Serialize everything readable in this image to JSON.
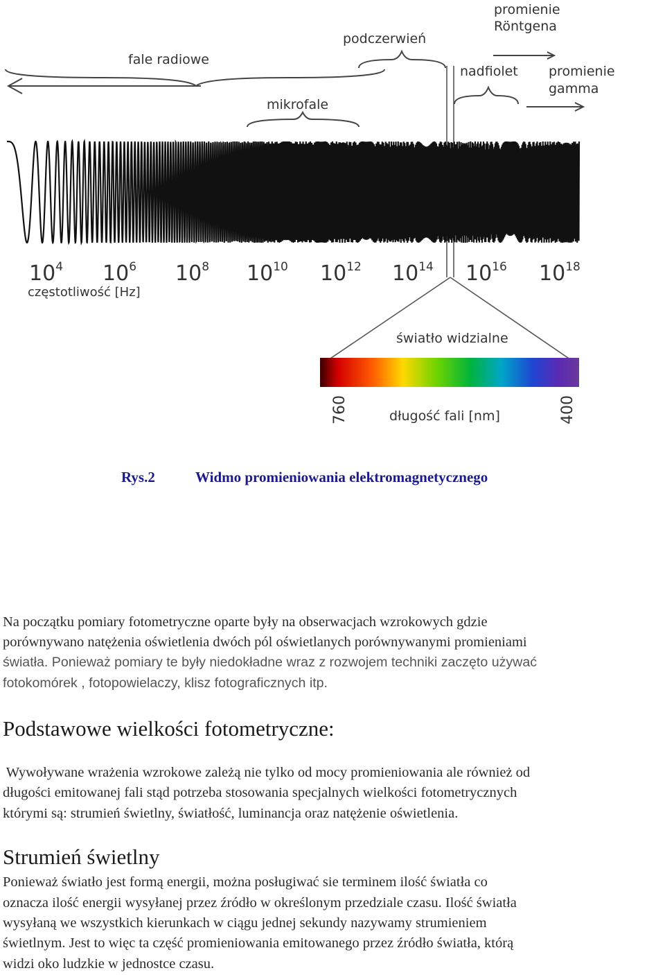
{
  "figure": {
    "bands": {
      "radio": "fale radiowe",
      "microwave": "mikrofale",
      "infrared": "podczerwień",
      "xray_line1": "promienie",
      "xray_line2": "Röntgena",
      "ultraviolet": "nadfiolet",
      "gamma_line1": "promienie",
      "gamma_line2": "gamma"
    },
    "frequency_ticks": [
      {
        "base": "10",
        "exp": "4"
      },
      {
        "base": "10",
        "exp": "6"
      },
      {
        "base": "10",
        "exp": "8"
      },
      {
        "base": "10",
        "exp": "10"
      },
      {
        "base": "10",
        "exp": "12"
      },
      {
        "base": "10",
        "exp": "14"
      },
      {
        "base": "10",
        "exp": "16"
      },
      {
        "base": "10",
        "exp": "18"
      }
    ],
    "frequency_label": "częstotliwość [Hz]",
    "visible_label": "światło widzialne",
    "wavelength_label": "długość fali [nm]",
    "wavelength_left": "760",
    "wavelength_right": "400"
  },
  "caption": {
    "number": "Rys.2",
    "text": "Widmo promieniowania elektromagnetycznego"
  },
  "intro_lines": [
    "Na początku  pomiary fotometryczne oparte były na obserwacjach wzrokowych gdzie",
    "porównywano natężenia oświetlenia dwóch pól oświetlanych porównywanymi promieniami",
    "światła. Ponieważ pomiary te były niedokładne wraz z rozwojem techniki zaczęto używać",
    "fotokomórek , fotopowielaczy, klisz fotograficznych itp."
  ],
  "section1": {
    "heading": "Podstawowe wielkości fotometryczne:",
    "lines": [
      " Wywoływane wrażenia wzrokowe zależą nie tylko od mocy promieniowania ale również od",
      "długości emitowanej fali stąd potrzeba stosowania specjalnych wielkości fotometrycznych",
      "którymi są: strumień świetlny, światłość, luminancja oraz natężenie oświetlenia."
    ]
  },
  "section2": {
    "heading": "Strumień świetlny",
    "lines": [
      "Ponieważ światło jest formą energii,  można posługiwać sie terminem  ilość światła co",
      "oznacza ilość energii wysyłanej przez źródło w określonym przedziale czasu. Ilość światła",
      "wysyłaną we wszystkich kierunkach w ciągu jednej sekundy nazywamy strumieniem",
      "świetlnym. Jest to więc ta część promieniowania emitowanego przez źródło światła, którą",
      "widzi oko ludzkie w jednostce czasu."
    ]
  }
}
